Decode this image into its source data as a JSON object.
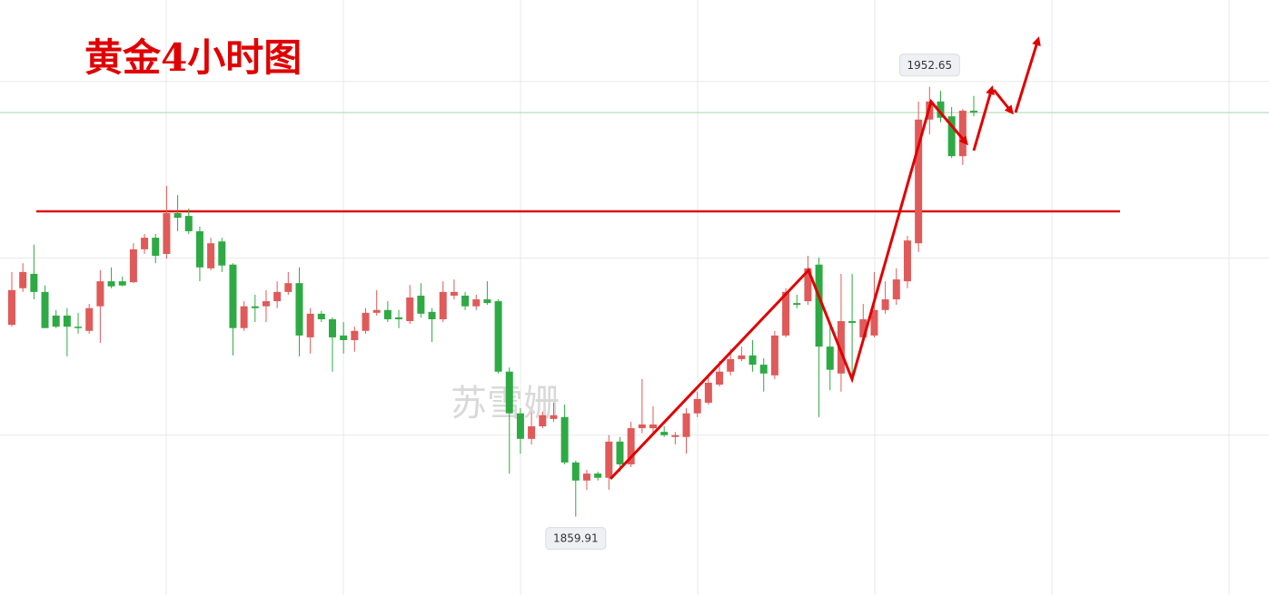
{
  "chart_data": {
    "type": "candlestick",
    "title": "黄金4小时图",
    "watermark": "苏雪姗",
    "high_label": "1952.65",
    "low_label": "1859.91",
    "up_color": "#e05a5a",
    "down_color": "#2eaa44",
    "ylim": [
      1843.0,
      1971.4
    ],
    "yticks": [
      1877.5,
      1915.7,
      1953.8
    ],
    "grid": true,
    "reference_lines": [
      {
        "value": 1925.8,
        "color": "#dd1111"
      },
      {
        "value": 1947.1,
        "color": "#a8d8a8"
      }
    ],
    "open": [
      1901.3,
      1909.2,
      1912.3,
      1908.4,
      1903.3,
      1903.3,
      1900.9,
      1900.0,
      1905.3,
      1910.7,
      1910.7,
      1910.5,
      1917.6,
      1920.1,
      1916.6,
      1925.4,
      1924.8,
      1921.5,
      1913.5,
      1919.3,
      1914.3,
      1900.6,
      1905.3,
      1905.3,
      1906.4,
      1908.4,
      1910.3,
      1898.6,
      1903.7,
      1902.5,
      1899.0,
      1898.0,
      1900.0,
      1903.9,
      1904.5,
      1902.9,
      1902.1,
      1907.6,
      1904.1,
      1902.5,
      1907.6,
      1907.6,
      1905.3,
      1906.8,
      1906.4,
      1891.2,
      1882.2,
      1876.7,
      1879.4,
      1881.0,
      1881.4,
      1871.6,
      1867.7,
      1869.2,
      1868.3,
      1876.1,
      1871.2,
      1879.0,
      1879.0,
      1878.2,
      1877.1,
      1877.1,
      1882.2,
      1884.5,
      1888.4,
      1891.2,
      1893.9,
      1894.7,
      1892.7,
      1890.4,
      1899.0,
      1906.0,
      1906.4,
      1914.3,
      1896.6,
      1890.8,
      1902.1,
      1898.6,
      1899.0,
      1904.5,
      1906.8,
      1910.7,
      1918.9,
      1945.6,
      1949.5,
      1946.3,
      1937.7,
      1947.5
    ],
    "high": [
      1912.7,
      1914.6,
      1918.6,
      1909.8,
      1904.5,
      1904.9,
      1903.9,
      1905.8,
      1913.1,
      1913.7,
      1911.7,
      1918.9,
      1920.9,
      1920.9,
      1931.3,
      1929.3,
      1926.4,
      1922.5,
      1920.1,
      1920.1,
      1914.6,
      1906.4,
      1907.8,
      1908.8,
      1910.7,
      1912.7,
      1913.7,
      1904.9,
      1904.3,
      1902.9,
      1901.9,
      1900.9,
      1904.9,
      1908.8,
      1906.4,
      1904.5,
      1909.9,
      1910.3,
      1904.9,
      1910.7,
      1911.1,
      1908.4,
      1907.8,
      1910.7,
      1906.8,
      1892.1,
      1883.3,
      1882.4,
      1882.6,
      1884.5,
      1884.1,
      1872.0,
      1870.0,
      1869.6,
      1877.5,
      1877.1,
      1880.4,
      1889.6,
      1883.7,
      1879.4,
      1878.2,
      1883.3,
      1886.9,
      1890.0,
      1893.5,
      1896.1,
      1896.6,
      1898.0,
      1894.1,
      1900.0,
      1909.2,
      1907.8,
      1916.2,
      1915.8,
      1900.9,
      1912.3,
      1912.3,
      1905.8,
      1912.7,
      1910.7,
      1913.5,
      1920.5,
      1949.5,
      1952.65,
      1951.8,
      1948.3,
      1947.9,
      1950.7
    ],
    "low": [
      1900.9,
      1908.4,
      1906.8,
      1900.6,
      1900.6,
      1894.5,
      1899.4,
      1899.4,
      1897.4,
      1909.2,
      1909.6,
      1910.3,
      1916.6,
      1914.6,
      1915.6,
      1921.5,
      1920.9,
      1910.7,
      1913.1,
      1912.7,
      1894.7,
      1900.0,
      1901.9,
      1901.9,
      1904.9,
      1907.8,
      1894.5,
      1895.1,
      1901.9,
      1891.2,
      1895.1,
      1895.5,
      1899.4,
      1903.3,
      1901.9,
      1900.6,
      1901.5,
      1902.9,
      1897.6,
      1901.9,
      1906.8,
      1904.5,
      1904.5,
      1905.6,
      1890.8,
      1869.2,
      1873.5,
      1875.5,
      1879.0,
      1880.4,
      1871.2,
      1859.91,
      1865.7,
      1867.7,
      1865.7,
      1869.6,
      1870.6,
      1877.9,
      1877.9,
      1877.1,
      1875.5,
      1873.5,
      1881.4,
      1884.1,
      1888.0,
      1890.4,
      1893.5,
      1891.2,
      1886.9,
      1889.6,
      1898.6,
      1904.9,
      1905.6,
      1881.4,
      1887.2,
      1886.9,
      1889.2,
      1898.0,
      1898.6,
      1903.7,
      1905.6,
      1909.2,
      1917.0,
      1942.4,
      1945.0,
      1937.3,
      1935.8,
      1946.3
    ],
    "close": [
      1908.8,
      1912.7,
      1908.4,
      1900.6,
      1900.9,
      1900.9,
      1900.6,
      1904.9,
      1910.7,
      1909.6,
      1909.8,
      1917.6,
      1920.1,
      1916.2,
      1925.4,
      1924.4,
      1921.5,
      1913.7,
      1918.9,
      1914.1,
      1900.6,
      1905.3,
      1904.9,
      1906.4,
      1908.4,
      1910.3,
      1899.0,
      1903.7,
      1902.5,
      1898.6,
      1898.0,
      1900.0,
      1903.9,
      1904.5,
      1902.5,
      1902.5,
      1907.2,
      1903.7,
      1902.5,
      1908.4,
      1908.4,
      1905.3,
      1906.8,
      1906.0,
      1891.2,
      1882.2,
      1876.7,
      1879.4,
      1881.8,
      1881.8,
      1871.6,
      1867.7,
      1869.2,
      1868.3,
      1876.1,
      1871.2,
      1879.0,
      1879.8,
      1879.8,
      1877.5,
      1877.5,
      1882.2,
      1885.3,
      1888.8,
      1891.2,
      1893.9,
      1894.7,
      1892.7,
      1890.8,
      1899.0,
      1908.4,
      1905.6,
      1913.5,
      1896.6,
      1891.6,
      1902.1,
      1901.7,
      1902.5,
      1904.5,
      1906.8,
      1911.1,
      1919.5,
      1945.6,
      1949.5,
      1946.0,
      1937.7,
      1947.5,
      1947.1
    ]
  }
}
